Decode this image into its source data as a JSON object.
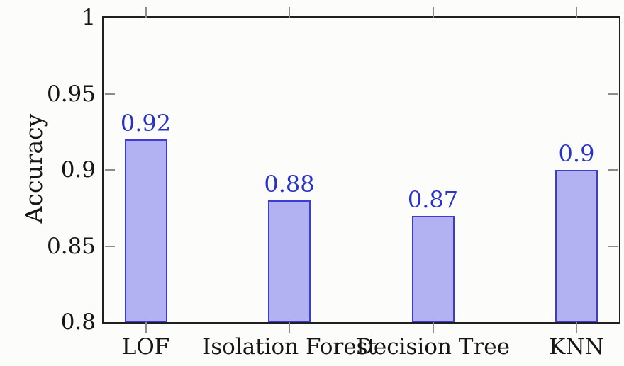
{
  "chart_data": {
    "type": "bar",
    "title": "",
    "categories": [
      "LOF",
      "Isolation Forest",
      "Decision Tree",
      "KNN"
    ],
    "values": [
      0.92,
      0.88,
      0.87,
      0.9
    ],
    "bar_labels": [
      "0.92",
      "0.88",
      "0.87",
      "0.9"
    ],
    "xlabel": "",
    "ylabel": "Accuracy",
    "ylim": [
      0.8,
      1.0
    ],
    "yticks": [
      0.8,
      0.85,
      0.9,
      0.95,
      1.0
    ],
    "ytick_labels": [
      "0.8",
      "0.85",
      "0.9",
      "0.95",
      "1"
    ],
    "grid": false,
    "legend": null,
    "tick_style": "x ticks outside top and bottom at bar centers; y ticks inside on left and right",
    "colors": {
      "bar_fill": "#b2b2f3",
      "bar_border": "#3c3cd4",
      "value_label": "#2a33c8",
      "axis_line": "#1f1f1f",
      "tick_mark": "#8c8c8c",
      "text": "#161616",
      "background": "#fcfcfa"
    }
  }
}
